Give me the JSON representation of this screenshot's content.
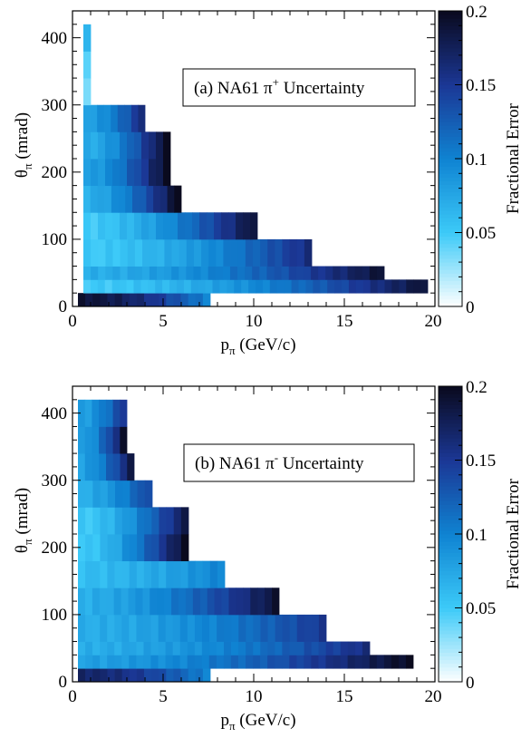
{
  "colors": {
    "scale_low": "#ffffff",
    "scale_0.05": "#3ccaf8",
    "scale_0.10": "#0f83d2",
    "scale_0.15": "#1b3795",
    "scale_high": "#0a0a1e"
  },
  "chart_data": [
    {
      "type": "heatmap",
      "legend_text": "(a) NA61 π⁺ Uncertainty",
      "legend_main": "(a) NA61 π",
      "legend_sup": "+",
      "legend_tail": " Uncertainty",
      "xlabel_main": "p",
      "xlabel_sub": "π",
      "xlabel_tail": " (GeV/c)",
      "ylabel_main": "θ",
      "ylabel_sub": "π",
      "ylabel_tail": " (mrad)",
      "colorbar_label": "Fractional Error",
      "xlim": [
        0,
        20
      ],
      "ylim": [
        0,
        440
      ],
      "zlim": [
        0,
        0.2
      ],
      "x_ticks": [
        "0",
        "5",
        "10",
        "15",
        "20"
      ],
      "y_ticks": [
        "0",
        "100",
        "200",
        "300",
        "400"
      ],
      "z_ticks": [
        "0",
        "0.05",
        "0.1",
        "0.15",
        "0.2"
      ],
      "bins": [
        {
          "theta": [
            0,
            20
          ],
          "p_range": [
            0.3,
            7.6
          ],
          "e_start": 0.19,
          "e_end": 0.1
        },
        {
          "theta": [
            20,
            40
          ],
          "p_range": [
            0.6,
            19.6
          ],
          "e_start": 0.05,
          "e_end": 0.19
        },
        {
          "theta": [
            40,
            60
          ],
          "p_range": [
            0.6,
            17.2
          ],
          "e_start": 0.07,
          "e_end": 0.19
        },
        {
          "theta": [
            60,
            100
          ],
          "p_range": [
            0.6,
            13.2
          ],
          "e_start": 0.05,
          "e_end": 0.16
        },
        {
          "theta": [
            100,
            140
          ],
          "p_range": [
            0.6,
            10.2
          ],
          "e_start": 0.05,
          "e_end": 0.19
        },
        {
          "theta": [
            140,
            180
          ],
          "p_range": [
            0.6,
            6.0
          ],
          "e_start": 0.07,
          "e_end": 0.2
        },
        {
          "theta": [
            180,
            220
          ],
          "p_range": [
            0.6,
            5.4
          ],
          "e_start": 0.08,
          "e_end": 0.2
        },
        {
          "theta": [
            220,
            260
          ],
          "p_range": [
            0.6,
            5.4
          ],
          "e_start": 0.07,
          "e_end": 0.2
        },
        {
          "theta": [
            260,
            300
          ],
          "p_range": [
            0.6,
            4.0
          ],
          "e_start": 0.08,
          "e_end": 0.16
        },
        {
          "theta": [
            300,
            340
          ],
          "p_range": [
            0.6,
            1.0
          ],
          "e_start": 0.04,
          "e_end": 0.04
        },
        {
          "theta": [
            340,
            380
          ],
          "p_range": [
            0.6,
            1.0
          ],
          "e_start": 0.04,
          "e_end": 0.04
        },
        {
          "theta": [
            380,
            420
          ],
          "p_range": [
            0.6,
            1.0
          ],
          "e_start": 0.06,
          "e_end": 0.06
        }
      ]
    },
    {
      "type": "heatmap",
      "legend_text": "(b) NA61 π⁻ Uncertainty",
      "legend_main": "(b) NA61 π",
      "legend_sup": "-",
      "legend_tail": " Uncertainty",
      "xlabel_main": "p",
      "xlabel_sub": "π",
      "xlabel_tail": " (GeV/c)",
      "ylabel_main": "θ",
      "ylabel_sub": "π",
      "ylabel_tail": " (mrad)",
      "colorbar_label": "Fractional Error",
      "xlim": [
        0,
        20
      ],
      "ylim": [
        0,
        440
      ],
      "zlim": [
        0,
        0.2
      ],
      "x_ticks": [
        "0",
        "5",
        "10",
        "15",
        "20"
      ],
      "y_ticks": [
        "0",
        "100",
        "200",
        "300",
        "400"
      ],
      "z_ticks": [
        "0",
        "0.05",
        "0.1",
        "0.15",
        "0.2"
      ],
      "bins": [
        {
          "theta": [
            0,
            20
          ],
          "p_range": [
            0.3,
            7.6
          ],
          "e_start": 0.17,
          "e_end": 0.1
        },
        {
          "theta": [
            20,
            40
          ],
          "p_range": [
            0.3,
            18.8
          ],
          "e_start": 0.08,
          "e_end": 0.2
        },
        {
          "theta": [
            40,
            60
          ],
          "p_range": [
            0.3,
            16.4
          ],
          "e_start": 0.07,
          "e_end": 0.16
        },
        {
          "theta": [
            60,
            100
          ],
          "p_range": [
            0.3,
            14.0
          ],
          "e_start": 0.07,
          "e_end": 0.15
        },
        {
          "theta": [
            100,
            140
          ],
          "p_range": [
            0.3,
            11.4
          ],
          "e_start": 0.07,
          "e_end": 0.19
        },
        {
          "theta": [
            140,
            180
          ],
          "p_range": [
            0.3,
            8.4
          ],
          "e_start": 0.06,
          "e_end": 0.1
        },
        {
          "theta": [
            180,
            220
          ],
          "p_range": [
            0.3,
            6.4
          ],
          "e_start": 0.05,
          "e_end": 0.2
        },
        {
          "theta": [
            220,
            260
          ],
          "p_range": [
            0.3,
            6.4
          ],
          "e_start": 0.05,
          "e_end": 0.18
        },
        {
          "theta": [
            260,
            300
          ],
          "p_range": [
            0.3,
            4.4
          ],
          "e_start": 0.07,
          "e_end": 0.14
        },
        {
          "theta": [
            300,
            340
          ],
          "p_range": [
            0.3,
            3.4
          ],
          "e_start": 0.08,
          "e_end": 0.18
        },
        {
          "theta": [
            340,
            380
          ],
          "p_range": [
            0.3,
            3.0
          ],
          "e_start": 0.08,
          "e_end": 0.19
        },
        {
          "theta": [
            380,
            420
          ],
          "p_range": [
            0.3,
            3.0
          ],
          "e_start": 0.08,
          "e_end": 0.15
        }
      ]
    }
  ]
}
